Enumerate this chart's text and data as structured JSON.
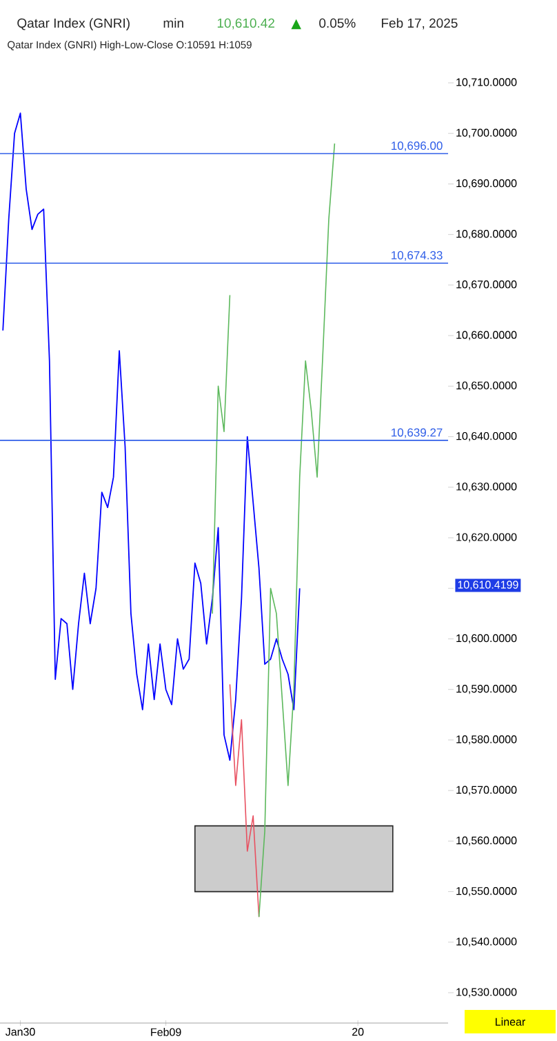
{
  "chart_data": {
    "type": "line",
    "title": "Qatar Index  (GNRI)",
    "subtitle": "Qatar Index (GNRI)  High-Low-Close    O:10591   H:1059",
    "annotations": [
      "min",
      "10,610.42",
      "▲",
      "0.05%",
      "Feb 17, 2025",
      "10,610.4199",
      "Linear"
    ],
    "categories": [
      null,
      null,
      null,
      "Jan30",
      null,
      null,
      null,
      null,
      null,
      null,
      null,
      null,
      null,
      null,
      null,
      null,
      null,
      null,
      null,
      null,
      null,
      null,
      null,
      null,
      null,
      null,
      null,
      null,
      "Feb09",
      null,
      null,
      null,
      null,
      null,
      null,
      null,
      null,
      null,
      null,
      null,
      null,
      null,
      null,
      null,
      null,
      null,
      null,
      null,
      null,
      null,
      null,
      null,
      null,
      null,
      null,
      null,
      null,
      null,
      null,
      null,
      null,
      "20",
      null,
      null,
      null,
      null,
      null,
      null,
      null,
      null,
      null,
      null,
      null,
      null,
      null,
      null,
      null
    ],
    "ylim": [
      10524,
      10710
    ],
    "yticks": [
      {
        "value": 10530,
        "label": "10,530.0000"
      },
      {
        "value": 10540,
        "label": "10,540.0000"
      },
      {
        "value": 10550,
        "label": "10,550.0000"
      },
      {
        "value": 10560,
        "label": "10,560.0000"
      },
      {
        "value": 10570,
        "label": "10,570.0000"
      },
      {
        "value": 10580,
        "label": "10,580.0000"
      },
      {
        "value": 10590,
        "label": "10,590.0000"
      },
      {
        "value": 10600,
        "label": "10,600.0000"
      },
      {
        "value": 10610,
        "label": null
      },
      {
        "value": 10620,
        "label": "10,620.0000"
      },
      {
        "value": 10630,
        "label": "10,630.0000"
      },
      {
        "value": 10640,
        "label": "10,640.0000"
      },
      {
        "value": 10650,
        "label": "10,650.0000"
      },
      {
        "value": 10660,
        "label": "10,660.0000"
      },
      {
        "value": 10670,
        "label": "10,670.0000"
      },
      {
        "value": 10680,
        "label": "10,680.0000"
      },
      {
        "value": 10690,
        "label": "10,690.0000"
      },
      {
        "value": 10700,
        "label": "10,700.0000"
      },
      {
        "value": 10710,
        "label": "10,710.0000"
      }
    ],
    "series": [
      {
        "type": "area",
        "color": "#cccccc",
        "values": [
          null,
          null,
          null,
          null,
          null,
          null,
          null,
          null,
          null,
          null,
          null,
          null,
          null,
          null,
          null,
          null,
          null,
          null,
          null,
          null,
          null,
          null,
          null,
          null,
          null,
          null,
          null,
          null,
          null,
          null,
          null,
          null,
          null,
          null,
          null,
          null,
          null,
          null,
          null,
          null,
          null,
          null,
          null,
          null,
          null,
          null,
          null,
          null,
          null,
          null,
          null,
          null,
          null,
          null,
          null,
          null,
          null,
          null,
          null,
          null,
          null,
          null,
          null,
          null,
          null,
          null,
          null,
          null,
          null,
          null,
          null,
          null,
          null,
          null,
          null,
          null,
          null
        ],
        "lower": [
          null,
          null,
          null,
          null,
          null,
          null,
          null,
          null,
          null,
          null,
          null,
          null,
          null,
          null,
          null,
          null,
          null,
          null,
          null,
          null,
          null,
          null,
          null,
          null,
          null,
          null,
          null,
          null,
          null,
          null,
          null,
          null,
          null,
          10550,
          null,
          null,
          null,
          null,
          null,
          null,
          null,
          null,
          null,
          null,
          null,
          null,
          null,
          null,
          null,
          null,
          null,
          null,
          null,
          null,
          null,
          null,
          null,
          null,
          null,
          null,
          null,
          null,
          null,
          null,
          null,
          null,
          null,
          10550,
          null,
          null,
          null,
          null,
          null,
          null,
          null,
          null,
          null
        ],
        "upper": [
          null,
          null,
          null,
          null,
          null,
          null,
          null,
          null,
          null,
          null,
          null,
          null,
          null,
          null,
          null,
          null,
          null,
          null,
          null,
          null,
          null,
          null,
          null,
          null,
          null,
          null,
          null,
          null,
          null,
          null,
          null,
          null,
          null,
          10563,
          null,
          null,
          null,
          null,
          null,
          null,
          null,
          null,
          null,
          null,
          null,
          null,
          null,
          null,
          null,
          null,
          null,
          null,
          null,
          null,
          null,
          null,
          null,
          null,
          null,
          null,
          null,
          null,
          null,
          null,
          null,
          null,
          null,
          10563,
          null,
          null,
          null,
          null,
          null,
          null,
          null,
          null,
          null
        ]
      },
      {
        "color": "#0000ff",
        "values": [
          10661,
          10683,
          10700,
          10704,
          10689,
          10681,
          10684,
          10685,
          10655,
          10592,
          10604,
          10603,
          10590,
          10603,
          10613,
          10603,
          10610,
          10629,
          10626,
          10632,
          10657,
          10638,
          10605,
          10593,
          10586,
          10599,
          10588,
          10599,
          10590,
          10587,
          10600,
          10594,
          10596,
          10615,
          10611,
          10599,
          10608,
          10622,
          10581,
          10576,
          10588,
          10608,
          10640,
          10627,
          10614,
          10595,
          10596,
          10600,
          10596,
          10593,
          10586,
          10610,
          null,
          null,
          null,
          null,
          null,
          null,
          null,
          null,
          null,
          null,
          null,
          null,
          null,
          null,
          null,
          null,
          null,
          null,
          null,
          null,
          null,
          null,
          null,
          null,
          null
        ]
      },
      {
        "color": "#e85060",
        "values": [
          null,
          null,
          null,
          null,
          null,
          null,
          null,
          null,
          null,
          null,
          null,
          null,
          null,
          null,
          null,
          null,
          null,
          null,
          null,
          null,
          null,
          null,
          null,
          null,
          null,
          null,
          null,
          null,
          null,
          null,
          null,
          null,
          null,
          null,
          null,
          null,
          null,
          null,
          null,
          10591,
          10571,
          10584,
          10558,
          10565,
          10545,
          null,
          null,
          null,
          null,
          null,
          null,
          null,
          null,
          null,
          null,
          null,
          null,
          null,
          null,
          null,
          null,
          null,
          null,
          null,
          null,
          null,
          null,
          null,
          null,
          null,
          null,
          null,
          null,
          null,
          null,
          null,
          null
        ]
      },
      {
        "color": "#5cb85c",
        "values": [
          null,
          null,
          null,
          null,
          null,
          null,
          null,
          null,
          null,
          null,
          null,
          null,
          null,
          null,
          null,
          null,
          null,
          null,
          null,
          null,
          null,
          null,
          null,
          null,
          null,
          null,
          null,
          null,
          null,
          null,
          null,
          null,
          null,
          null,
          null,
          null,
          10605,
          10650,
          10641,
          10668,
          null,
          null,
          null,
          null,
          10545,
          10562,
          10610,
          10605,
          10588,
          10571,
          10590,
          10632,
          10655,
          10645,
          10632,
          10657,
          10683,
          10698,
          null,
          null,
          null,
          null,
          null,
          null,
          null,
          null,
          null,
          null,
          null,
          null,
          null,
          null,
          null,
          null,
          null,
          null,
          null
        ]
      }
    ],
    "ref_lines": [
      {
        "axis": "y",
        "value": 10696.0,
        "label": "10,696.00",
        "color": "#2f5ee8"
      },
      {
        "axis": "y",
        "value": 10674.33,
        "label": "10,674.33",
        "color": "#2f5ee8"
      },
      {
        "axis": "y",
        "value": 10639.27,
        "label": "10,639.27",
        "color": "#2f5ee8"
      }
    ],
    "grid": false,
    "marker": "none",
    "line_style": "solid"
  }
}
